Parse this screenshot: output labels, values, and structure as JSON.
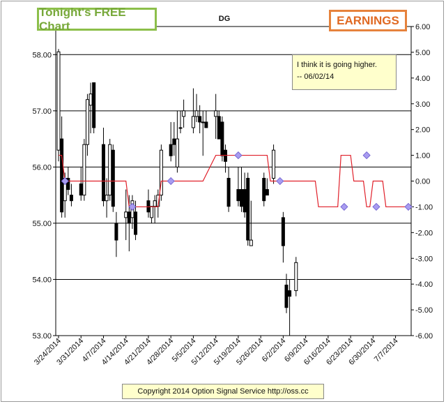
{
  "header": {
    "left_badge": "Tonight's FREE Chart",
    "symbol": "DG",
    "right_badge": "EARNINGS"
  },
  "note": {
    "line1": "I think it is going higher.",
    "line2": "-- 06/02/14"
  },
  "footer": {
    "copyright": "Copyright 2014 Option Signal Service http://oss.cc"
  },
  "colors": {
    "candle_up": "#ffffff",
    "candle_down": "#000000",
    "signal_line": "#e0202a",
    "marker": "#a89cf0",
    "left_badge": "#77a83a",
    "right_badge": "#e06a24",
    "note_bg": "#ffffcc"
  },
  "chart_data": [
    {
      "type": "candlestick",
      "series_name": "DG",
      "ylim": [
        53,
        58.5
      ],
      "yticks": [
        "53.00",
        "54.00",
        "55.00",
        "56.00",
        "57.00",
        "58.00"
      ],
      "xlim": [
        "2014-03-24",
        "2014-07-11"
      ],
      "xticks": [
        "3/24/2014",
        "3/31/2014",
        "4/7/2014",
        "4/14/2014",
        "4/21/2014",
        "4/28/2014",
        "5/5/2014",
        "5/12/2014",
        "5/19/2014",
        "5/26/2014",
        "6/2/2014",
        "6/9/2014",
        "6/16/2014",
        "6/23/2014",
        "6/30/2014",
        "7/7/2014"
      ],
      "grid": "horizontal",
      "candles": [
        {
          "date": "2014-03-24",
          "open": 56.3,
          "high": 58.1,
          "low": 56.1,
          "close": 58.05
        },
        {
          "date": "2014-03-25",
          "open": 56.5,
          "high": 56.9,
          "low": 55.1,
          "close": 55.2
        },
        {
          "date": "2014-03-26",
          "open": 55.4,
          "high": 55.9,
          "low": 55.1,
          "close": 55.8
        },
        {
          "date": "2014-03-27",
          "open": 55.8,
          "high": 56.0,
          "low": 55.5,
          "close": 55.6
        },
        {
          "date": "2014-03-28",
          "open": 55.5,
          "high": 55.7,
          "low": 55.3,
          "close": 55.4
        },
        {
          "date": "2014-03-31",
          "open": 55.7,
          "high": 56.0,
          "low": 55.4,
          "close": 55.5
        },
        {
          "date": "2014-04-01",
          "open": 55.5,
          "high": 56.5,
          "low": 55.4,
          "close": 56.4
        },
        {
          "date": "2014-04-02",
          "open": 56.4,
          "high": 57.3,
          "low": 56.2,
          "close": 57.2
        },
        {
          "date": "2014-04-03",
          "open": 57.1,
          "high": 57.5,
          "low": 56.6,
          "close": 57.3
        },
        {
          "date": "2014-04-04",
          "open": 57.5,
          "high": 57.5,
          "low": 56.6,
          "close": 56.7
        },
        {
          "date": "2014-04-07",
          "open": 56.4,
          "high": 56.7,
          "low": 55.3,
          "close": 55.4
        },
        {
          "date": "2014-04-08",
          "open": 55.4,
          "high": 55.8,
          "low": 55.1,
          "close": 55.5
        },
        {
          "date": "2014-04-09",
          "open": 55.5,
          "high": 56.5,
          "low": 55.4,
          "close": 56.4
        },
        {
          "date": "2014-04-10",
          "open": 56.3,
          "high": 56.4,
          "low": 55.2,
          "close": 55.3
        },
        {
          "date": "2014-04-11",
          "open": 55.0,
          "high": 55.2,
          "low": 54.4,
          "close": 54.7
        },
        {
          "date": "2014-04-14",
          "open": 55.1,
          "high": 55.6,
          "low": 54.7,
          "close": 55.2
        },
        {
          "date": "2014-04-15",
          "open": 55.2,
          "high": 55.5,
          "low": 54.5,
          "close": 55.0
        },
        {
          "date": "2014-04-16",
          "open": 55.1,
          "high": 55.5,
          "low": 54.9,
          "close": 55.4
        },
        {
          "date": "2014-04-17",
          "open": 55.2,
          "high": 55.4,
          "low": 54.7,
          "close": 54.8
        },
        {
          "date": "2014-04-21",
          "open": 55.4,
          "high": 55.6,
          "low": 55.1,
          "close": 55.2
        },
        {
          "date": "2014-04-22",
          "open": 55.1,
          "high": 55.3,
          "low": 55.0,
          "close": 55.3
        },
        {
          "date": "2014-04-23",
          "open": 55.3,
          "high": 55.5,
          "low": 55.0,
          "close": 55.4
        },
        {
          "date": "2014-04-24",
          "open": 55.3,
          "high": 55.6,
          "low": 55.1,
          "close": 55.5
        },
        {
          "date": "2014-04-25",
          "open": 55.5,
          "high": 56.4,
          "low": 55.4,
          "close": 56.3
        },
        {
          "date": "2014-04-28",
          "open": 56.4,
          "high": 56.8,
          "low": 56.1,
          "close": 56.2
        },
        {
          "date": "2014-04-29",
          "open": 56.5,
          "high": 56.8,
          "low": 56.2,
          "close": 56.4
        },
        {
          "date": "2014-04-30",
          "open": 56.0,
          "high": 57.0,
          "low": 55.9,
          "close": 56.5
        },
        {
          "date": "2014-05-01",
          "open": 56.7,
          "high": 57.0,
          "low": 56.6,
          "close": 56.7
        },
        {
          "date": "2014-05-02",
          "open": 56.9,
          "high": 57.2,
          "low": 56.7,
          "close": 57.0
        },
        {
          "date": "2014-05-05",
          "open": 56.7,
          "high": 57.4,
          "low": 56.6,
          "close": 56.9
        },
        {
          "date": "2014-05-06",
          "open": 56.9,
          "high": 57.3,
          "low": 56.8,
          "close": 57.0
        },
        {
          "date": "2014-05-07",
          "open": 56.9,
          "high": 57.1,
          "low": 56.6,
          "close": 56.8
        },
        {
          "date": "2014-05-08",
          "open": 56.8,
          "high": 57.0,
          "low": 56.2,
          "close": 56.8
        },
        {
          "date": "2014-05-09",
          "open": 56.8,
          "high": 57.0,
          "low": 56.7,
          "close": 56.7
        },
        {
          "date": "2014-05-12",
          "open": 56.9,
          "high": 57.3,
          "low": 56.5,
          "close": 57.0
        },
        {
          "date": "2014-05-13",
          "open": 56.9,
          "high": 57.0,
          "low": 56.5,
          "close": 56.5
        },
        {
          "date": "2014-05-14",
          "open": 56.8,
          "high": 56.9,
          "low": 56.1,
          "close": 56.2
        },
        {
          "date": "2014-05-15",
          "open": 56.3,
          "high": 56.4,
          "low": 55.9,
          "close": 56.1
        },
        {
          "date": "2014-05-16",
          "open": 55.8,
          "high": 56.0,
          "low": 55.2,
          "close": 55.3
        },
        {
          "date": "2014-05-19",
          "open": 55.6,
          "high": 56.0,
          "low": 55.3,
          "close": 55.4
        },
        {
          "date": "2014-05-20",
          "open": 55.6,
          "high": 56.0,
          "low": 55.2,
          "close": 55.3
        },
        {
          "date": "2014-05-21",
          "open": 55.6,
          "high": 55.9,
          "low": 55.1,
          "close": 55.2
        },
        {
          "date": "2014-05-22",
          "open": 55.8,
          "high": 55.9,
          "low": 54.6,
          "close": 54.7
        },
        {
          "date": "2014-05-23",
          "open": 54.6,
          "high": 55.4,
          "low": 54.6,
          "close": 54.7
        },
        {
          "date": "2014-05-27",
          "open": 55.8,
          "high": 55.9,
          "low": 55.3,
          "close": 55.4
        },
        {
          "date": "2014-05-28",
          "open": 55.6,
          "high": 55.8,
          "low": 55.5,
          "close": 55.5
        },
        {
          "date": "2014-05-30",
          "open": 55.8,
          "high": 56.4,
          "low": 55.7,
          "close": 56.3
        },
        {
          "date": "2014-06-02",
          "open": 55.1,
          "high": 55.2,
          "low": 54.3,
          "close": 54.6
        },
        {
          "date": "2014-06-03",
          "open": 53.9,
          "high": 54.1,
          "low": 53.4,
          "close": 53.5
        },
        {
          "date": "2014-06-04",
          "open": 53.8,
          "high": 54.0,
          "low": 53.0,
          "close": 53.7
        },
        {
          "date": "2014-06-06",
          "open": 53.8,
          "high": 54.4,
          "low": 53.7,
          "close": 54.3
        }
      ]
    },
    {
      "type": "line",
      "series_name": "signal",
      "axis": "right",
      "ylim": [
        -6,
        6
      ],
      "yticks": [
        "-6.00",
        "-5.00",
        "-4.00",
        "-3.00",
        "-2.00",
        "-1.00",
        "0.00",
        "1.00",
        "2.00",
        "3.00",
        "4.00",
        "5.00",
        "6.00"
      ],
      "points": [
        [
          "2014-03-24",
          1
        ],
        [
          "2014-03-25",
          1
        ],
        [
          "2014-03-26",
          0
        ],
        [
          "2014-04-14",
          0
        ],
        [
          "2014-04-15",
          -1
        ],
        [
          "2014-04-24",
          -1
        ],
        [
          "2014-04-25",
          0
        ],
        [
          "2014-05-08",
          0
        ],
        [
          "2014-05-12",
          1
        ],
        [
          "2014-05-28",
          1
        ],
        [
          "2014-05-29",
          0
        ],
        [
          "2014-06-12",
          0
        ],
        [
          "2014-06-13",
          -1
        ],
        [
          "2014-06-19",
          -1
        ],
        [
          "2014-06-20",
          1
        ],
        [
          "2014-06-23",
          1
        ],
        [
          "2014-06-24",
          0
        ],
        [
          "2014-06-27",
          0
        ],
        [
          "2014-06-28",
          -1
        ],
        [
          "2014-06-29",
          -1
        ],
        [
          "2014-06-30",
          0
        ],
        [
          "2014-07-03",
          0
        ],
        [
          "2014-07-04",
          -1
        ],
        [
          "2014-07-10",
          -1
        ]
      ],
      "markers": [
        [
          "2014-03-26",
          0
        ],
        [
          "2014-04-16",
          -1
        ],
        [
          "2014-04-28",
          0
        ],
        [
          "2014-05-19",
          1
        ],
        [
          "2014-06-01",
          0
        ],
        [
          "2014-06-21",
          -1
        ],
        [
          "2014-06-28",
          1
        ],
        [
          "2014-07-01",
          -1
        ],
        [
          "2014-07-11",
          -1
        ]
      ]
    }
  ]
}
